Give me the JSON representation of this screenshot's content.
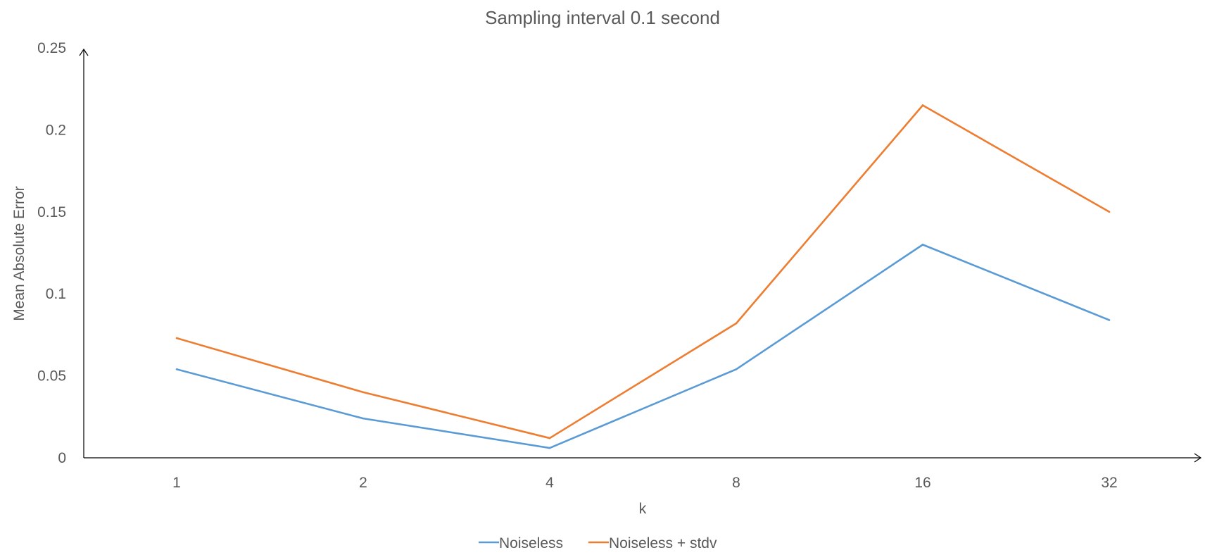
{
  "chart_data": {
    "type": "line",
    "title": "Sampling interval 0.1 second",
    "xlabel": "k",
    "ylabel": "Mean Absolute Error",
    "categories": [
      "1",
      "2",
      "4",
      "8",
      "16",
      "32"
    ],
    "ylim": [
      0,
      0.25
    ],
    "yticks": [
      "0",
      "0.05",
      "0.1",
      "0.15",
      "0.2",
      "0.25"
    ],
    "grid": false,
    "legend_position": "bottom",
    "series": [
      {
        "name": "Noiseless",
        "color": "#5B9BD5",
        "values": [
          0.054,
          0.024,
          0.006,
          0.054,
          0.13,
          0.084
        ]
      },
      {
        "name": "Noiseless + stdv",
        "color": "#ED7D31",
        "values": [
          0.073,
          0.04,
          0.012,
          0.082,
          0.215,
          0.15
        ]
      }
    ]
  }
}
